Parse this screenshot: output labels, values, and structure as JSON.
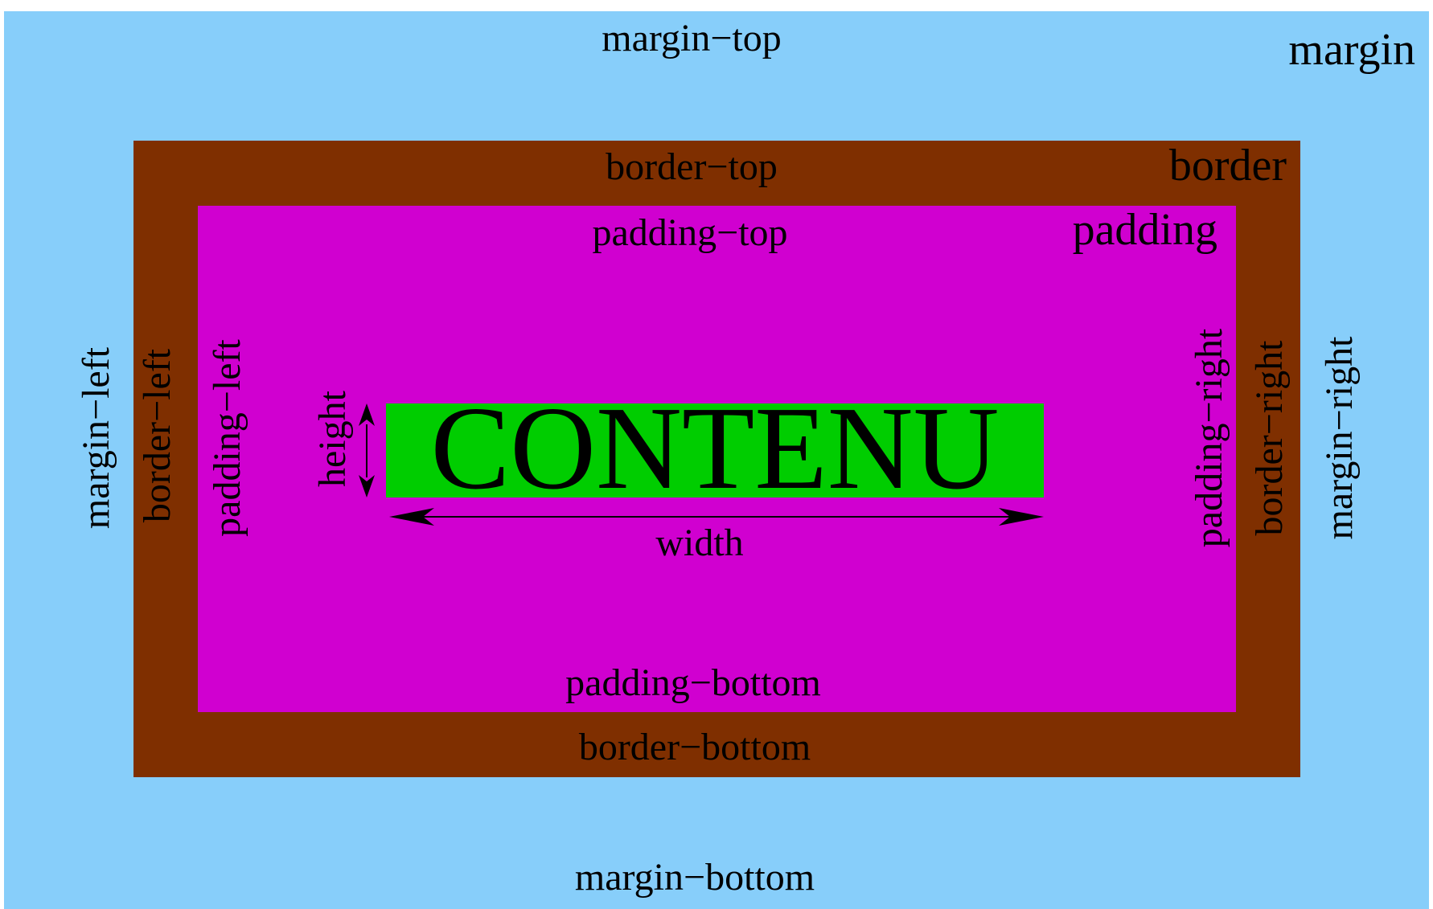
{
  "colors": {
    "margin": "#87cefa",
    "border": "#7f2f00",
    "padding": "#d000d0",
    "content": "#00cd00",
    "text": "#000000"
  },
  "margin": {
    "title": "margin",
    "top": "margin−top",
    "bottom": "margin−bottom",
    "left": "margin−left",
    "right": "margin−right"
  },
  "border": {
    "title": "border",
    "top": "border−top",
    "bottom": "border−bottom",
    "left": "border−left",
    "right": "border−right"
  },
  "padding": {
    "title": "padding",
    "top": "padding−top",
    "bottom": "padding−bottom",
    "left": "padding−left",
    "right": "padding−right"
  },
  "content": {
    "label": "CONTENU",
    "width_label": "width",
    "height_label": "height"
  }
}
